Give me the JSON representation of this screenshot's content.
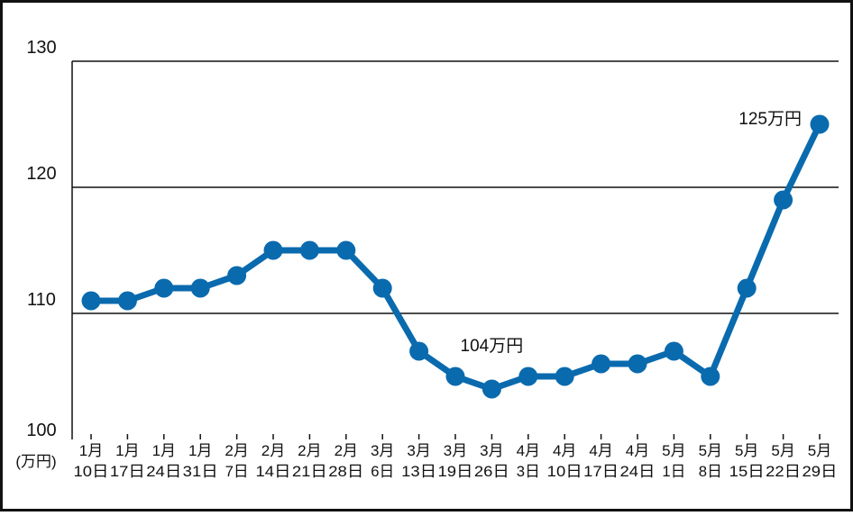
{
  "colors": {
    "line": "#0a6aae",
    "grid": "#111111",
    "border": "#111111"
  },
  "chart_data": {
    "type": "line",
    "title": "",
    "xlabel": "",
    "ylabel": "(万円)",
    "ylim": [
      100,
      130
    ],
    "yticks": [
      "100",
      "110",
      "120",
      "130"
    ],
    "grid": true,
    "categories": [
      [
        "1月",
        "10日"
      ],
      [
        "1月",
        "17日"
      ],
      [
        "1月",
        "24日"
      ],
      [
        "1月",
        "31日"
      ],
      [
        "2月",
        "7日"
      ],
      [
        "2月",
        "14日"
      ],
      [
        "2月",
        "21日"
      ],
      [
        "2月",
        "28日"
      ],
      [
        "3月",
        "6日"
      ],
      [
        "3月",
        "13日"
      ],
      [
        "3月",
        "19日"
      ],
      [
        "3月",
        "26日"
      ],
      [
        "4月",
        "3日"
      ],
      [
        "4月",
        "10日"
      ],
      [
        "4月",
        "17日"
      ],
      [
        "4月",
        "24日"
      ],
      [
        "5月",
        "1日"
      ],
      [
        "5月",
        "8日"
      ],
      [
        "5月",
        "15日"
      ],
      [
        "5月",
        "22日"
      ],
      [
        "5月",
        "29日"
      ]
    ],
    "series": [
      {
        "values": [
          111,
          111,
          112,
          112,
          113,
          115,
          115,
          115,
          112,
          107,
          105,
          104,
          105,
          105,
          106,
          106,
          107,
          105,
          112,
          119,
          125
        ]
      }
    ],
    "annotations": [
      {
        "text": "104万円",
        "index": 11
      },
      {
        "text": "125万円",
        "index": 20
      }
    ]
  }
}
